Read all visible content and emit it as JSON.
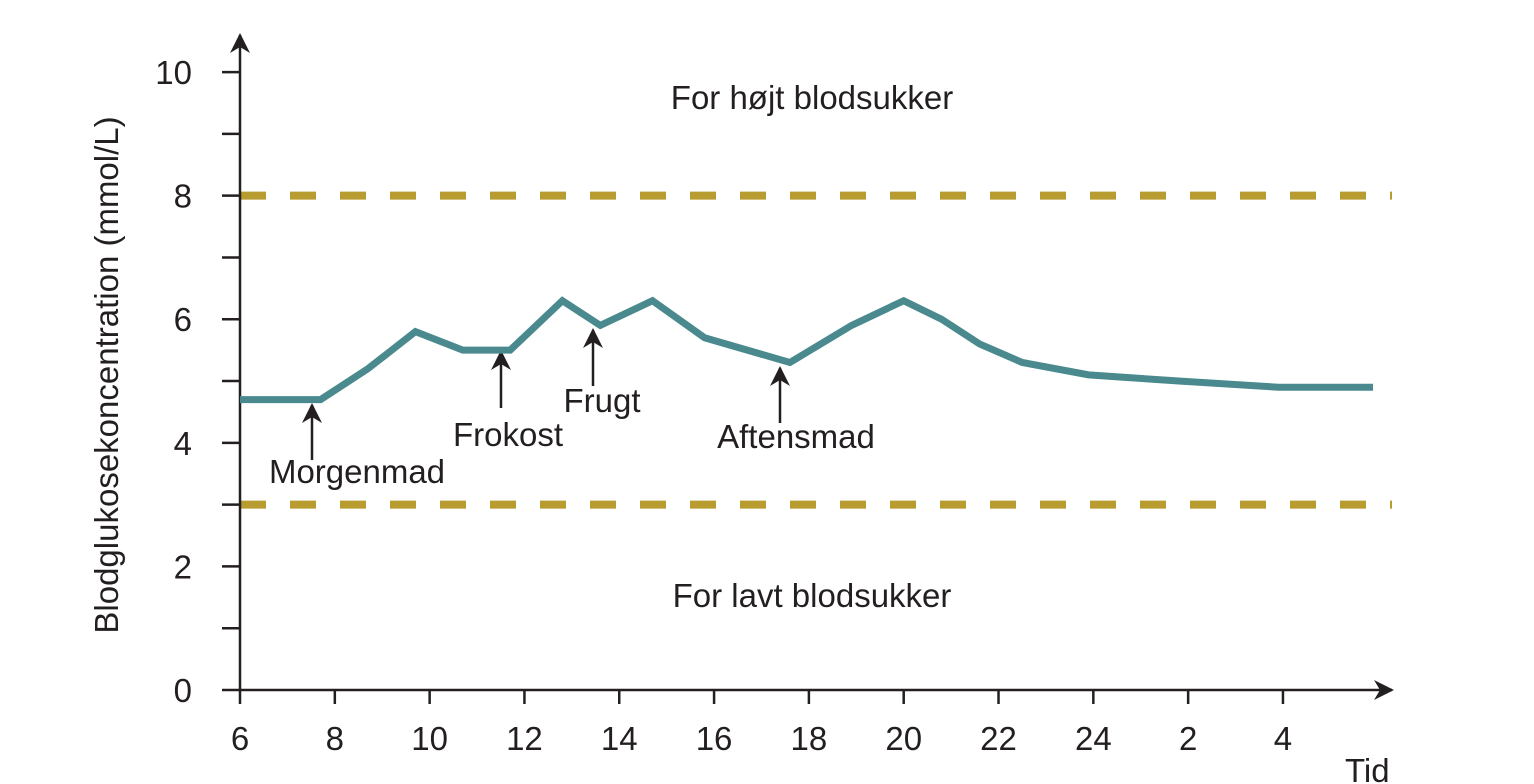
{
  "chart_data": {
    "type": "line",
    "y_label": "Blodglukosekoncentration (mmol/L)",
    "x_label": "Tid",
    "x": [
      6,
      7.7,
      8.7,
      9.7,
      10.7,
      11.7,
      12.8,
      13.6,
      14.7,
      15.8,
      17.6,
      18.9,
      20,
      20.8,
      21.6,
      22.5,
      23.9,
      25.8,
      27.9,
      29.9
    ],
    "values": [
      4.7,
      4.7,
      5.2,
      5.8,
      5.5,
      5.5,
      6.3,
      5.9,
      6.3,
      5.7,
      5.3,
      5.9,
      6.3,
      6.0,
      5.6,
      5.3,
      5.1,
      5.0,
      4.9,
      4.9
    ],
    "color": "#4a8a8e",
    "xlim": [
      6,
      30.3
    ],
    "xticks": [
      6,
      8,
      10,
      12,
      14,
      16,
      18,
      20,
      22,
      24,
      {
        "value": 26,
        "label": "2"
      },
      {
        "value": 28,
        "label": "4"
      }
    ],
    "ylim": [
      0,
      10.6
    ],
    "yticks": [
      0,
      2,
      4,
      6,
      8,
      10
    ],
    "minor_yticks": [
      1,
      3,
      5,
      7,
      9
    ],
    "reference_lines": [
      8,
      3
    ],
    "reference_color": "#b89c30",
    "region_labels": [
      "For højt blodsukker",
      "For lavt blodsukker"
    ],
    "annotations": [
      "Morgenmad",
      "Frokost",
      "Frugt",
      "Aftensmad"
    ]
  }
}
